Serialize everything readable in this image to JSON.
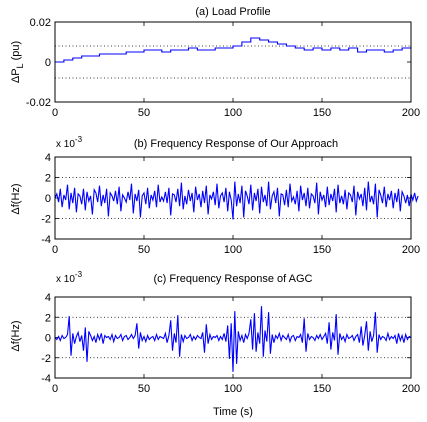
{
  "chart_data": [
    {
      "type": "line",
      "title": "(a) Load Profile",
      "ylabel": "ΔP",
      "ylabel_sub": "L",
      "ylabel_unit": "(pu)",
      "xlabel": "",
      "xlim": [
        0,
        200
      ],
      "ylim": [
        -0.02,
        0.02
      ],
      "x_ticks": [
        "0",
        "50",
        "100",
        "150",
        "200"
      ],
      "y_ticks": [
        "-0.02",
        "0",
        "0.02"
      ],
      "y_exponent": "",
      "gridlines_y": [
        -0.008,
        0.008
      ],
      "grid": "horizontal dotted",
      "step": 5,
      "series": [
        {
          "color": "#0000ff",
          "values": [
            0.0,
            0.001,
            0.002,
            0.003,
            0.003,
            0.004,
            0.004,
            0.004,
            0.005,
            0.005,
            0.006,
            0.006,
            0.005,
            0.006,
            0.006,
            0.007,
            0.006,
            0.006,
            0.007,
            0.007,
            0.008,
            0.01,
            0.012,
            0.011,
            0.01,
            0.009,
            0.008,
            0.007,
            0.006,
            0.007,
            0.006,
            0.007,
            0.006,
            0.007,
            0.005,
            0.006,
            0.006,
            0.005,
            0.006,
            0.007,
            0.008
          ]
        }
      ]
    },
    {
      "type": "line",
      "title": "(b) Frequency Response of Our Approach",
      "ylabel": "Δf(Hz)",
      "xlabel": "",
      "xlim": [
        0,
        200
      ],
      "ylim": [
        -4,
        4
      ],
      "x_ticks": [
        "0",
        "50",
        "100",
        "150",
        "200"
      ],
      "y_ticks": [
        "-4",
        "-2",
        "0",
        "2",
        "4"
      ],
      "y_exponent": "x 10",
      "y_exponent_power": "-3",
      "gridlines_y": [
        -2,
        2
      ],
      "grid": "horizontal dotted",
      "step": 1,
      "series": [
        {
          "color": "#0000ff",
          "values": [
            0.0,
            0.4,
            -0.4,
            0.9,
            -0.9,
            0.3,
            -0.2,
            1.3,
            -1.1,
            0.5,
            -0.5,
            1.0,
            -1.4,
            0.4,
            0.2,
            -0.6,
            0.9,
            -1.2,
            0.6,
            -0.3,
            0.2,
            -1.6,
            0.8,
            0.5,
            -0.4,
            1.2,
            -0.8,
            0.3,
            -0.5,
            0.9,
            -1.8,
            0.5,
            0.2,
            -0.3,
            0.7,
            -0.6,
            1.1,
            -1.3,
            0.3,
            0.0,
            -0.4,
            0.6,
            -0.2,
            1.4,
            -1.5,
            0.4,
            -0.3,
            0.8,
            -1.9,
            0.2,
            0.5,
            -0.6,
            1.0,
            -1.0,
            0.3,
            -0.2,
            0.7,
            -0.9,
            1.3,
            -0.4,
            0.1,
            -0.3,
            0.6,
            -0.5,
            1.0,
            -1.7,
            0.4,
            0.3,
            -0.4,
            0.9,
            -0.8,
            1.5,
            -1.1,
            0.2,
            -0.6,
            0.8,
            -0.3,
            0.5,
            -1.4,
            1.1,
            -0.2,
            0.4,
            -0.9,
            0.7,
            -0.5,
            1.2,
            -1.6,
            0.3,
            -0.1,
            0.6,
            -0.7,
            1.4,
            -1.0,
            0.2,
            0.5,
            -0.4,
            1.0,
            -1.3,
            0.6,
            -0.2,
            -2.1,
            1.6,
            -0.8,
            0.4,
            -0.5,
            1.2,
            -1.9,
            0.7,
            0.2,
            -0.6,
            1.3,
            -1.2,
            0.5,
            -0.3,
            0.9,
            -1.5,
            1.1,
            -0.4,
            0.3,
            -0.8,
            1.6,
            -1.1,
            0.2,
            0.6,
            -0.5,
            1.0,
            -1.8,
            0.4,
            0.3,
            -0.7,
            0.8,
            -0.9,
            1.4,
            -0.3,
            0.1,
            -0.6,
            0.7,
            -1.3,
            1.2,
            -0.2,
            0.5,
            -0.8,
            1.0,
            -1.0,
            0.4,
            0.2,
            -0.5,
            1.5,
            -1.6,
            0.6,
            -0.2,
            0.3,
            -0.9,
            1.1,
            -0.7,
            0.4,
            -0.3,
            0.9,
            -1.4,
            1.3,
            -0.5,
            0.2,
            -0.6,
            0.8,
            -1.1,
            0.5,
            0.3,
            -0.4,
            1.2,
            -1.7,
            0.6,
            -0.1,
            0.4,
            -0.8,
            1.0,
            -1.2,
            1.6,
            -0.4,
            0.2,
            -0.6,
            1.4,
            -1.9,
            0.8,
            0.3,
            -0.5,
            1.1,
            -0.9,
            0.4,
            -0.2,
            0.7,
            -1.0,
            0.5,
            -0.4,
            0.9,
            -1.3,
            0.6,
            0.2,
            -0.5,
            0.3,
            -0.8,
            0.4,
            -0.2,
            0.5,
            -0.3,
            0.2
          ]
        }
      ]
    },
    {
      "type": "line",
      "title": "(c) Frequency Response of AGC",
      "ylabel": "Δf(Hz)",
      "xlabel": "Time (s)",
      "xlim": [
        0,
        200
      ],
      "ylim": [
        -4,
        4
      ],
      "x_ticks": [
        "0",
        "50",
        "100",
        "150",
        "200"
      ],
      "y_ticks": [
        "-4",
        "-2",
        "0",
        "2",
        "4"
      ],
      "y_exponent": "x 10",
      "y_exponent_power": "-3",
      "gridlines_y": [
        -2,
        2
      ],
      "grid": "horizontal dotted",
      "step": 1,
      "series": [
        {
          "color": "#0000ff",
          "values": [
            0.0,
            -0.2,
            0.1,
            -0.3,
            0.2,
            -0.1,
            0.0,
            0.3,
            2.1,
            -1.8,
            0.4,
            -0.6,
            0.1,
            0.5,
            -0.4,
            0.2,
            -1.3,
            1.0,
            -2.4,
            0.6,
            0.2,
            -0.3,
            0.1,
            -0.5,
            0.3,
            -0.2,
            0.4,
            -0.6,
            0.2,
            0.0,
            0.1,
            -0.2,
            0.3,
            -0.4,
            0.2,
            -0.1,
            0.0,
            0.3,
            -0.3,
            0.1,
            0.2,
            -0.2,
            0.0,
            0.3,
            -0.1,
            0.2,
            1.4,
            -1.1,
            0.5,
            -0.3,
            0.1,
            -0.4,
            0.2,
            -0.2,
            0.0,
            0.1,
            -0.3,
            0.3,
            -0.2,
            0.1,
            0.0,
            -0.1,
            0.4,
            -0.5,
            0.2,
            1.7,
            -1.3,
            0.4,
            -0.5,
            2.2,
            -1.9,
            0.3,
            -0.4,
            0.2,
            -0.1,
            0.0,
            0.3,
            -0.3,
            0.1,
            -0.2,
            0.2,
            0.0,
            -0.1,
            0.5,
            -1.5,
            1.3,
            -0.6,
            0.3,
            -0.2,
            0.1,
            0.0,
            0.2,
            -0.3,
            0.1,
            -0.2,
            0.4,
            -0.4,
            1.2,
            -2.1,
            1.4,
            -3.4,
            2.6,
            -2.6,
            0.6,
            -0.3,
            0.2,
            -0.5,
            0.3,
            -0.1,
            0.4,
            1.8,
            -1.2,
            2.4,
            -1.4,
            0.5,
            -0.6,
            3.1,
            -1.9,
            0.7,
            -0.4,
            2.5,
            -1.6,
            0.3,
            -0.5,
            0.2,
            -0.1,
            0.4,
            -0.3,
            0.2,
            0.0,
            -0.2,
            0.3,
            -0.4,
            0.1,
            0.2,
            -0.3,
            0.1,
            0.0,
            0.3,
            -0.5,
            1.9,
            -1.4,
            0.4,
            -0.2,
            0.1,
            0.0,
            -0.3,
            0.2,
            -0.1,
            0.3,
            -0.2,
            0.1,
            0.4,
            -0.6,
            1.5,
            -1.2,
            0.5,
            -0.3,
            2.3,
            -1.7,
            0.4,
            -0.2,
            0.1,
            -0.4,
            0.3,
            -0.1,
            0.0,
            0.2,
            -0.3,
            0.1,
            0.3,
            -0.5,
            1.1,
            -0.8,
            0.2,
            1.6,
            -1.3,
            0.6,
            -0.4,
            0.2,
            2.5,
            -1.5,
            0.3,
            -0.2,
            0.1,
            0.0,
            -0.3,
            0.4,
            -0.2,
            0.1,
            -0.1,
            0.2,
            -0.6,
            0.4,
            -0.3,
            0.2,
            -0.5,
            0.3,
            -0.2,
            0.1,
            0.0
          ]
        }
      ]
    }
  ]
}
